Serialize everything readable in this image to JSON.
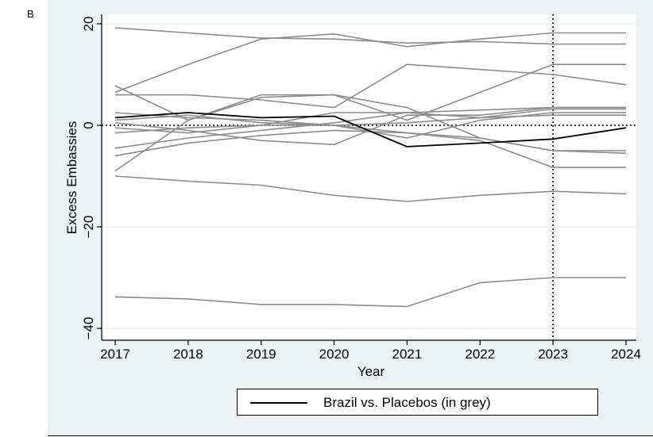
{
  "panel_label": "B",
  "legend": {
    "label": "Brazil vs. Placebos (in grey)"
  },
  "colors": {
    "plot_background": "#ffffff",
    "outer_background": "#eaf2f3",
    "gridline": "#e2ecee",
    "placebo_line": "#8c8c8c",
    "brazil_line": "#000000"
  },
  "chart_data": {
    "type": "line",
    "title": "",
    "xlabel": "Year",
    "ylabel": "Excess Embassies",
    "xlim": [
      2017,
      2024
    ],
    "ylim": [
      -42,
      22
    ],
    "xticks": [
      2017,
      2018,
      2019,
      2020,
      2021,
      2022,
      2023,
      2024
    ],
    "yticks": [
      -40,
      -20,
      0,
      20
    ],
    "reference_lines": [
      {
        "axis": "x",
        "value": 2023,
        "style": "dotted"
      },
      {
        "axis": "y",
        "value": 0,
        "style": "dotted"
      }
    ],
    "x": [
      2017,
      2018,
      2019,
      2020,
      2021,
      2022,
      2023,
      2024
    ],
    "series": [
      {
        "name": "Brazil",
        "highlight": true,
        "values": [
          1.5,
          2.5,
          1.5,
          1.8,
          -4.2,
          -3.5,
          -2.7,
          -0.5
        ]
      },
      {
        "values": [
          19.2,
          18.2,
          17.2,
          17.0,
          16.2,
          16.5,
          16.0,
          16.0
        ]
      },
      {
        "values": [
          6.5,
          12.0,
          17.0,
          18.0,
          15.5,
          17.0,
          18.2,
          18.2
        ]
      },
      {
        "values": [
          6.0,
          6.0,
          5.0,
          3.5,
          12.0,
          11.0,
          10.0,
          8.0
        ]
      },
      {
        "values": [
          7.8,
          1.0,
          5.5,
          6.0,
          1.0,
          6.5,
          12.0,
          12.0
        ]
      },
      {
        "values": [
          -9.0,
          1.0,
          6.0,
          6.0,
          3.5,
          -2.5,
          -5.0,
          -5.0
        ]
      },
      {
        "values": [
          -4.5,
          -2.5,
          -1.0,
          0.5,
          2.5,
          1.5,
          3.2,
          3.2
        ]
      },
      {
        "values": [
          -6.0,
          -3.5,
          -2.0,
          -1.0,
          -1.5,
          -3.0,
          -8.3,
          -8.3
        ]
      },
      {
        "values": [
          2.5,
          1.5,
          1.0,
          0.0,
          -1.5,
          -2.5,
          -5.0,
          -5.5
        ]
      },
      {
        "values": [
          1.0,
          2.0,
          0.5,
          0.0,
          -2.5,
          1.0,
          2.5,
          2.5
        ]
      },
      {
        "values": [
          0.5,
          -1.0,
          -3.0,
          -3.8,
          2.0,
          2.0,
          3.5,
          3.5
        ]
      },
      {
        "values": [
          -1.5,
          -0.5,
          0.0,
          2.5,
          2.5,
          3.0,
          3.5,
          3.5
        ]
      },
      {
        "values": [
          -0.5,
          -1.5,
          0.0,
          0.0,
          0.5,
          1.5,
          2.0,
          2.0
        ]
      },
      {
        "values": [
          -10.0,
          -11.0,
          -11.8,
          -13.8,
          -15.0,
          -13.8,
          -13.0,
          -13.5
        ]
      },
      {
        "values": [
          -33.8,
          -34.2,
          -35.3,
          -35.3,
          -35.7,
          -31.0,
          -30.0,
          -30.0
        ]
      }
    ]
  }
}
